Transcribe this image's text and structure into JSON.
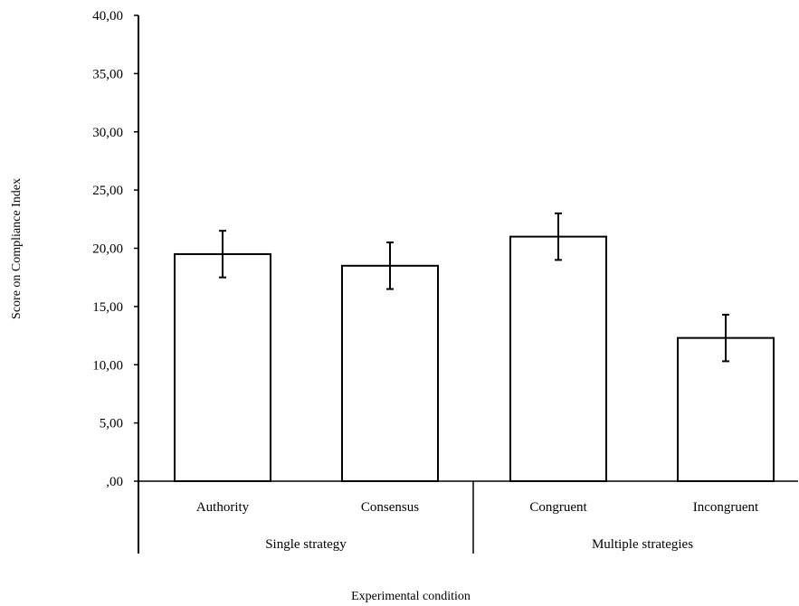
{
  "chart_data": {
    "type": "bar",
    "title": "",
    "xlabel": "Experimental condition",
    "ylabel": "Score on Compliance Index",
    "ylim": [
      0,
      40
    ],
    "yticks": [
      ",00",
      "5,00",
      "10,00",
      "15,00",
      "20,00",
      "25,00",
      "30,00",
      "35,00",
      "40,00"
    ],
    "ytick_values": [
      0,
      5,
      10,
      15,
      20,
      25,
      30,
      35,
      40
    ],
    "categories": [
      "Authority",
      "Consensus",
      "Congruent",
      "Incongruent"
    ],
    "groups": [
      {
        "label": "Single strategy",
        "categories": [
          "Authority",
          "Consensus"
        ]
      },
      {
        "label": "Multiple strategies",
        "categories": [
          "Congruent",
          "Incongruent"
        ]
      }
    ],
    "values": [
      19.5,
      18.5,
      21.0,
      12.3
    ],
    "error_lower": [
      17.5,
      16.5,
      19.0,
      10.3
    ],
    "error_upper": [
      21.5,
      20.5,
      23.0,
      14.3
    ],
    "bar_fill": "#ffffff",
    "bar_stroke": "#000000",
    "grid": false
  }
}
